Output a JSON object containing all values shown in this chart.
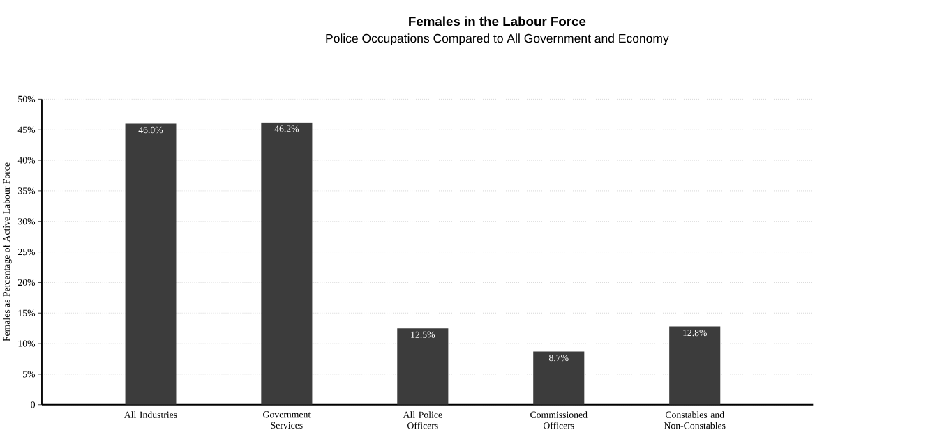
{
  "chart_data": {
    "type": "bar",
    "title": "Females in the Labour Force",
    "subtitle": "Police Occupations Compared to All Government and Economy",
    "ylabel": "Females as Percentage of Active Labour Force",
    "categories": [
      "All Industries",
      "Government Services",
      "All Police Officers",
      "Commissioned Officers",
      "Constables and Non-Constables"
    ],
    "values": [
      46.0,
      46.2,
      12.5,
      8.7,
      12.8
    ],
    "value_labels": [
      "46.0%",
      "46.2%",
      "12.5%",
      "8.7%",
      "12.8%"
    ],
    "color": "#3c3c3c",
    "ylim": [
      0,
      50
    ],
    "yticks": [
      0,
      {
        "value": 5,
        "label": "5%"
      },
      {
        "value": 10,
        "label": "10%"
      },
      {
        "value": 15,
        "label": "15%"
      },
      {
        "value": 20,
        "label": "20%"
      },
      {
        "value": 25,
        "label": "25%"
      },
      {
        "value": 30,
        "label": "30%"
      },
      {
        "value": 35,
        "label": "35%"
      },
      {
        "value": 40,
        "label": "40%"
      },
      {
        "value": 45,
        "label": "45%"
      },
      {
        "value": 50,
        "label": "50%"
      }
    ],
    "grid": "y"
  }
}
